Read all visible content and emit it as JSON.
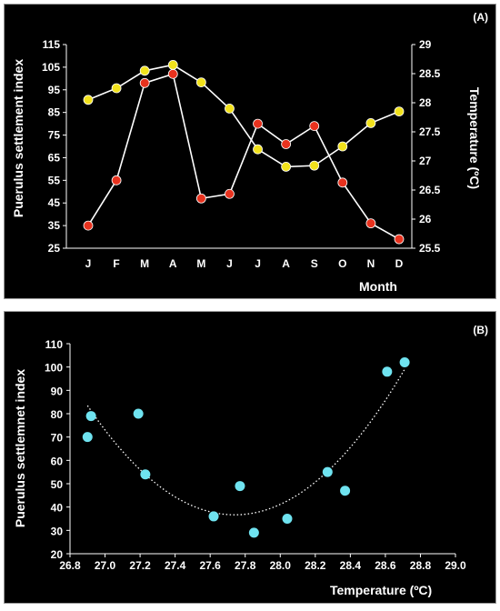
{
  "colors": {
    "background": "#000000",
    "line": "#ffffff",
    "settlement_marker": "#e8321e",
    "temperature_marker": "#f2e21c",
    "scatter_marker": "#6fe3f0",
    "trend": "#ffffff"
  },
  "chart_data": [
    {
      "type": "line",
      "panel_label": "(A)",
      "title": "",
      "xlabel": "Month",
      "ylabel": "Puerulus settlement index",
      "y2label": "Temperature (ºC)",
      "categories": [
        "J",
        "F",
        "M",
        "A",
        "M",
        "J",
        "J",
        "A",
        "S",
        "O",
        "N",
        "D"
      ],
      "ylim": [
        25,
        115
      ],
      "yticks": [
        "25",
        "35",
        "45",
        "55",
        "65",
        "75",
        "85",
        "95",
        "105",
        "115"
      ],
      "y2lim": [
        25.5,
        29
      ],
      "y2ticks": [
        "25.5",
        "26",
        "26.5",
        "27",
        "27.5",
        "28",
        "28.5",
        "29"
      ],
      "grid": false,
      "series": [
        {
          "name": "",
          "axis": "left",
          "marker": "red",
          "values": [
            35,
            55,
            98,
            102,
            47,
            49,
            80,
            71,
            79,
            54,
            36,
            29
          ]
        },
        {
          "name": "",
          "axis": "right",
          "marker": "yellow",
          "values": [
            28.05,
            28.25,
            28.55,
            28.65,
            28.35,
            27.9,
            27.2,
            26.9,
            26.92,
            27.25,
            27.65,
            27.85
          ]
        }
      ]
    },
    {
      "type": "scatter",
      "panel_label": "(B)",
      "title": "",
      "xlabel": "Temperature (ºC)",
      "ylabel": "Puerulus settlemnet index",
      "xlim": [
        26.8,
        29.0
      ],
      "xticks": [
        "26.8",
        "27.0",
        "27.2",
        "27.4",
        "27.6",
        "27.8",
        "28.0",
        "28.2",
        "28.4",
        "28.6",
        "28.8",
        "29.0"
      ],
      "ylim": [
        20,
        110
      ],
      "yticks": [
        "20",
        "30",
        "40",
        "50",
        "60",
        "70",
        "80",
        "90",
        "100",
        "110"
      ],
      "grid": false,
      "points": [
        {
          "x": 26.9,
          "y": 70
        },
        {
          "x": 26.92,
          "y": 79
        },
        {
          "x": 27.19,
          "y": 80
        },
        {
          "x": 27.23,
          "y": 54
        },
        {
          "x": 27.62,
          "y": 36
        },
        {
          "x": 27.77,
          "y": 49
        },
        {
          "x": 27.85,
          "y": 29
        },
        {
          "x": 28.04,
          "y": 35
        },
        {
          "x": 28.27,
          "y": 55
        },
        {
          "x": 28.37,
          "y": 47
        },
        {
          "x": 28.61,
          "y": 98
        },
        {
          "x": 28.71,
          "y": 102
        }
      ],
      "trendline": {
        "type": "polynomial",
        "order": 2,
        "x_range": [
          26.9,
          28.71
        ],
        "vertex": {
          "x": 27.75,
          "y": 36.5
        },
        "style": "dotted"
      }
    }
  ]
}
